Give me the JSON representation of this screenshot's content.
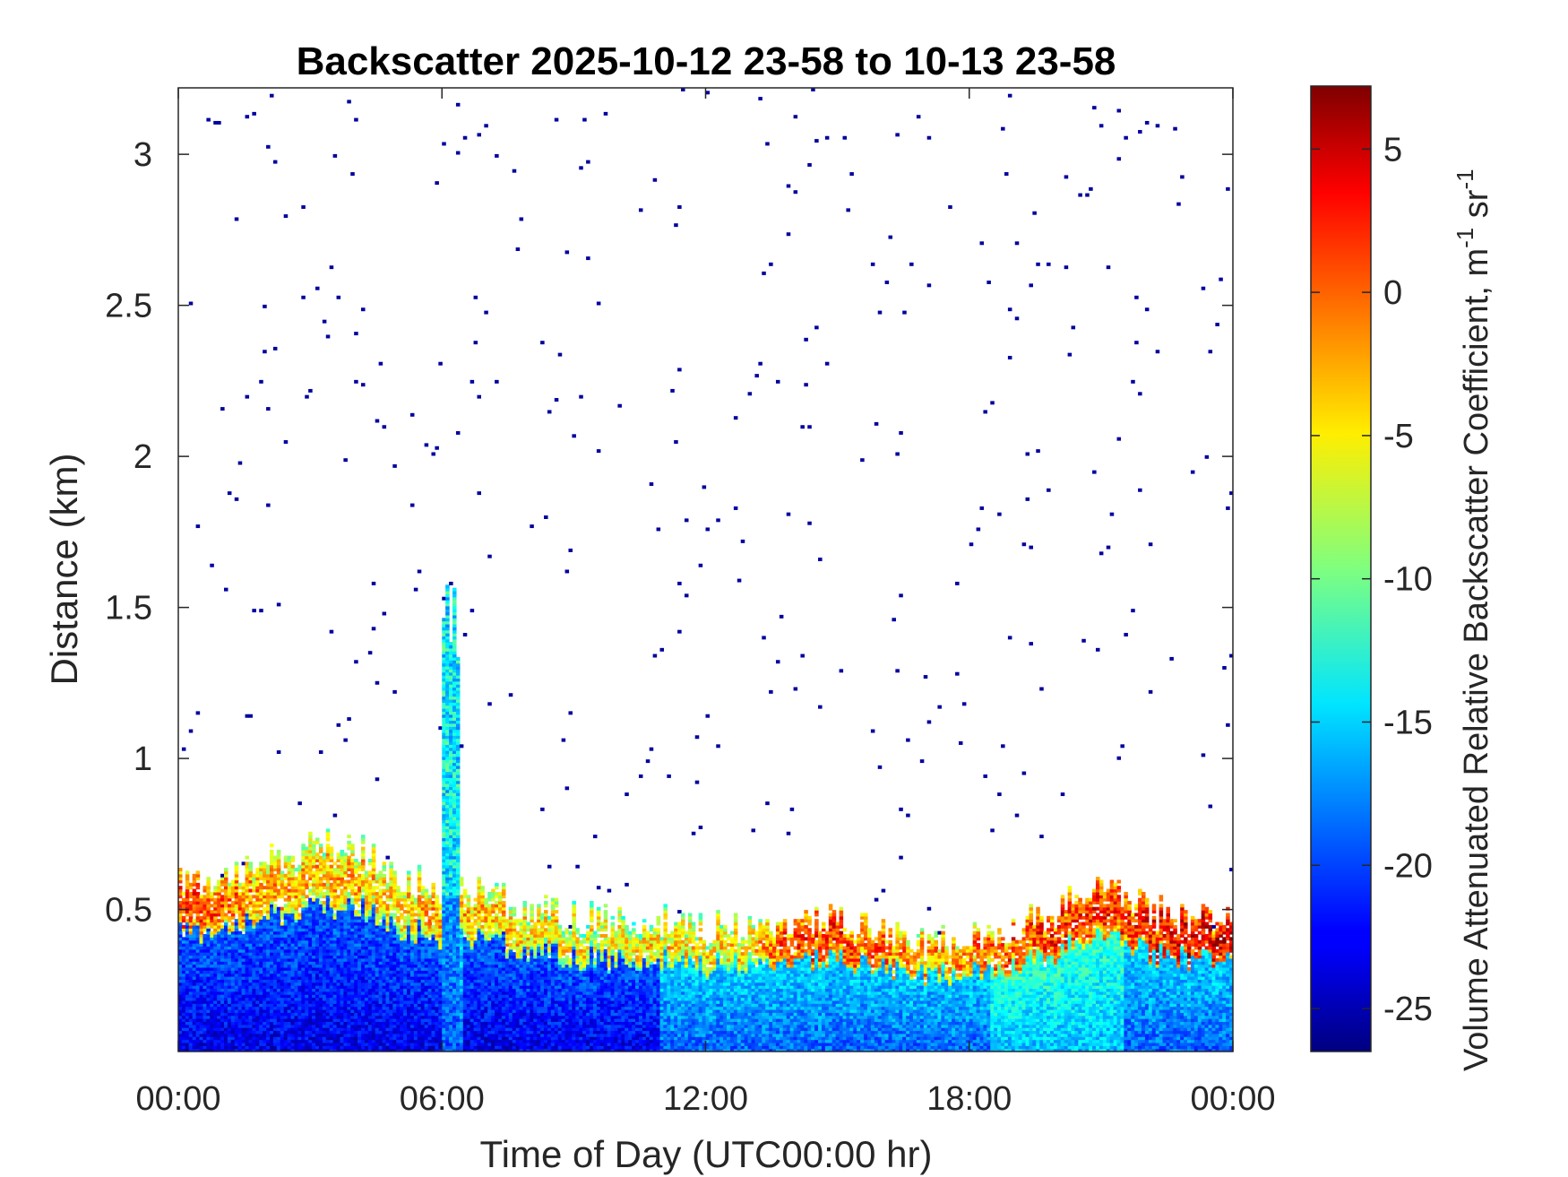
{
  "chart_data": {
    "type": "heatmap",
    "title": "Backscatter 2025-10-12 23-58 to 10-13 23-58",
    "xlabel": "Time of Day (UTC00:00 hr)",
    "ylabel": "Distance (km)",
    "xlim": [
      0,
      24
    ],
    "ylim": [
      0.03,
      3.22
    ],
    "x_ticks": [
      0,
      6,
      12,
      18,
      24
    ],
    "x_tick_labels": [
      "00:00",
      "06:00",
      "12:00",
      "18:00",
      "00:00"
    ],
    "y_ticks": [
      0.5,
      1,
      1.5,
      2,
      2.5,
      3
    ],
    "y_tick_labels": [
      "0.5",
      "1",
      "1.5",
      "2",
      "2.5",
      "3"
    ],
    "colorbar": {
      "label_main": "Volume Attenuated Relative Backscatter Coefficient, m",
      "label_sup1": "-1",
      "label_mid": " sr",
      "label_sup2": "-1",
      "colormap": "jet",
      "clim": [
        -26.5,
        7.2
      ],
      "ticks": [
        5,
        0,
        -5,
        -10,
        -15,
        -20,
        -25
      ],
      "tick_labels": [
        "5",
        "0",
        "-5",
        "-10",
        "-15",
        "-20",
        "-25"
      ]
    },
    "grid": false,
    "layer_profile": {
      "description_hours": [
        0,
        1,
        2,
        3,
        4,
        5,
        6,
        7,
        8,
        9,
        10,
        11,
        12,
        13,
        14,
        15,
        16,
        17,
        18,
        19,
        20,
        21,
        22,
        23,
        24
      ],
      "boundary_layer_top_km": [
        0.58,
        0.62,
        0.66,
        0.7,
        0.72,
        0.62,
        0.55,
        0.55,
        0.5,
        0.48,
        0.46,
        0.46,
        0.44,
        0.44,
        0.46,
        0.46,
        0.44,
        0.4,
        0.4,
        0.44,
        0.5,
        0.58,
        0.5,
        0.46,
        0.48
      ],
      "peak_backscatter_value": [
        2,
        0,
        -2,
        -3,
        -3,
        -4,
        -2,
        -3,
        -4,
        -5,
        -5,
        -4,
        -4,
        -4,
        2,
        2,
        0,
        -2,
        -1,
        1,
        2,
        2,
        3,
        4,
        4
      ]
    }
  }
}
